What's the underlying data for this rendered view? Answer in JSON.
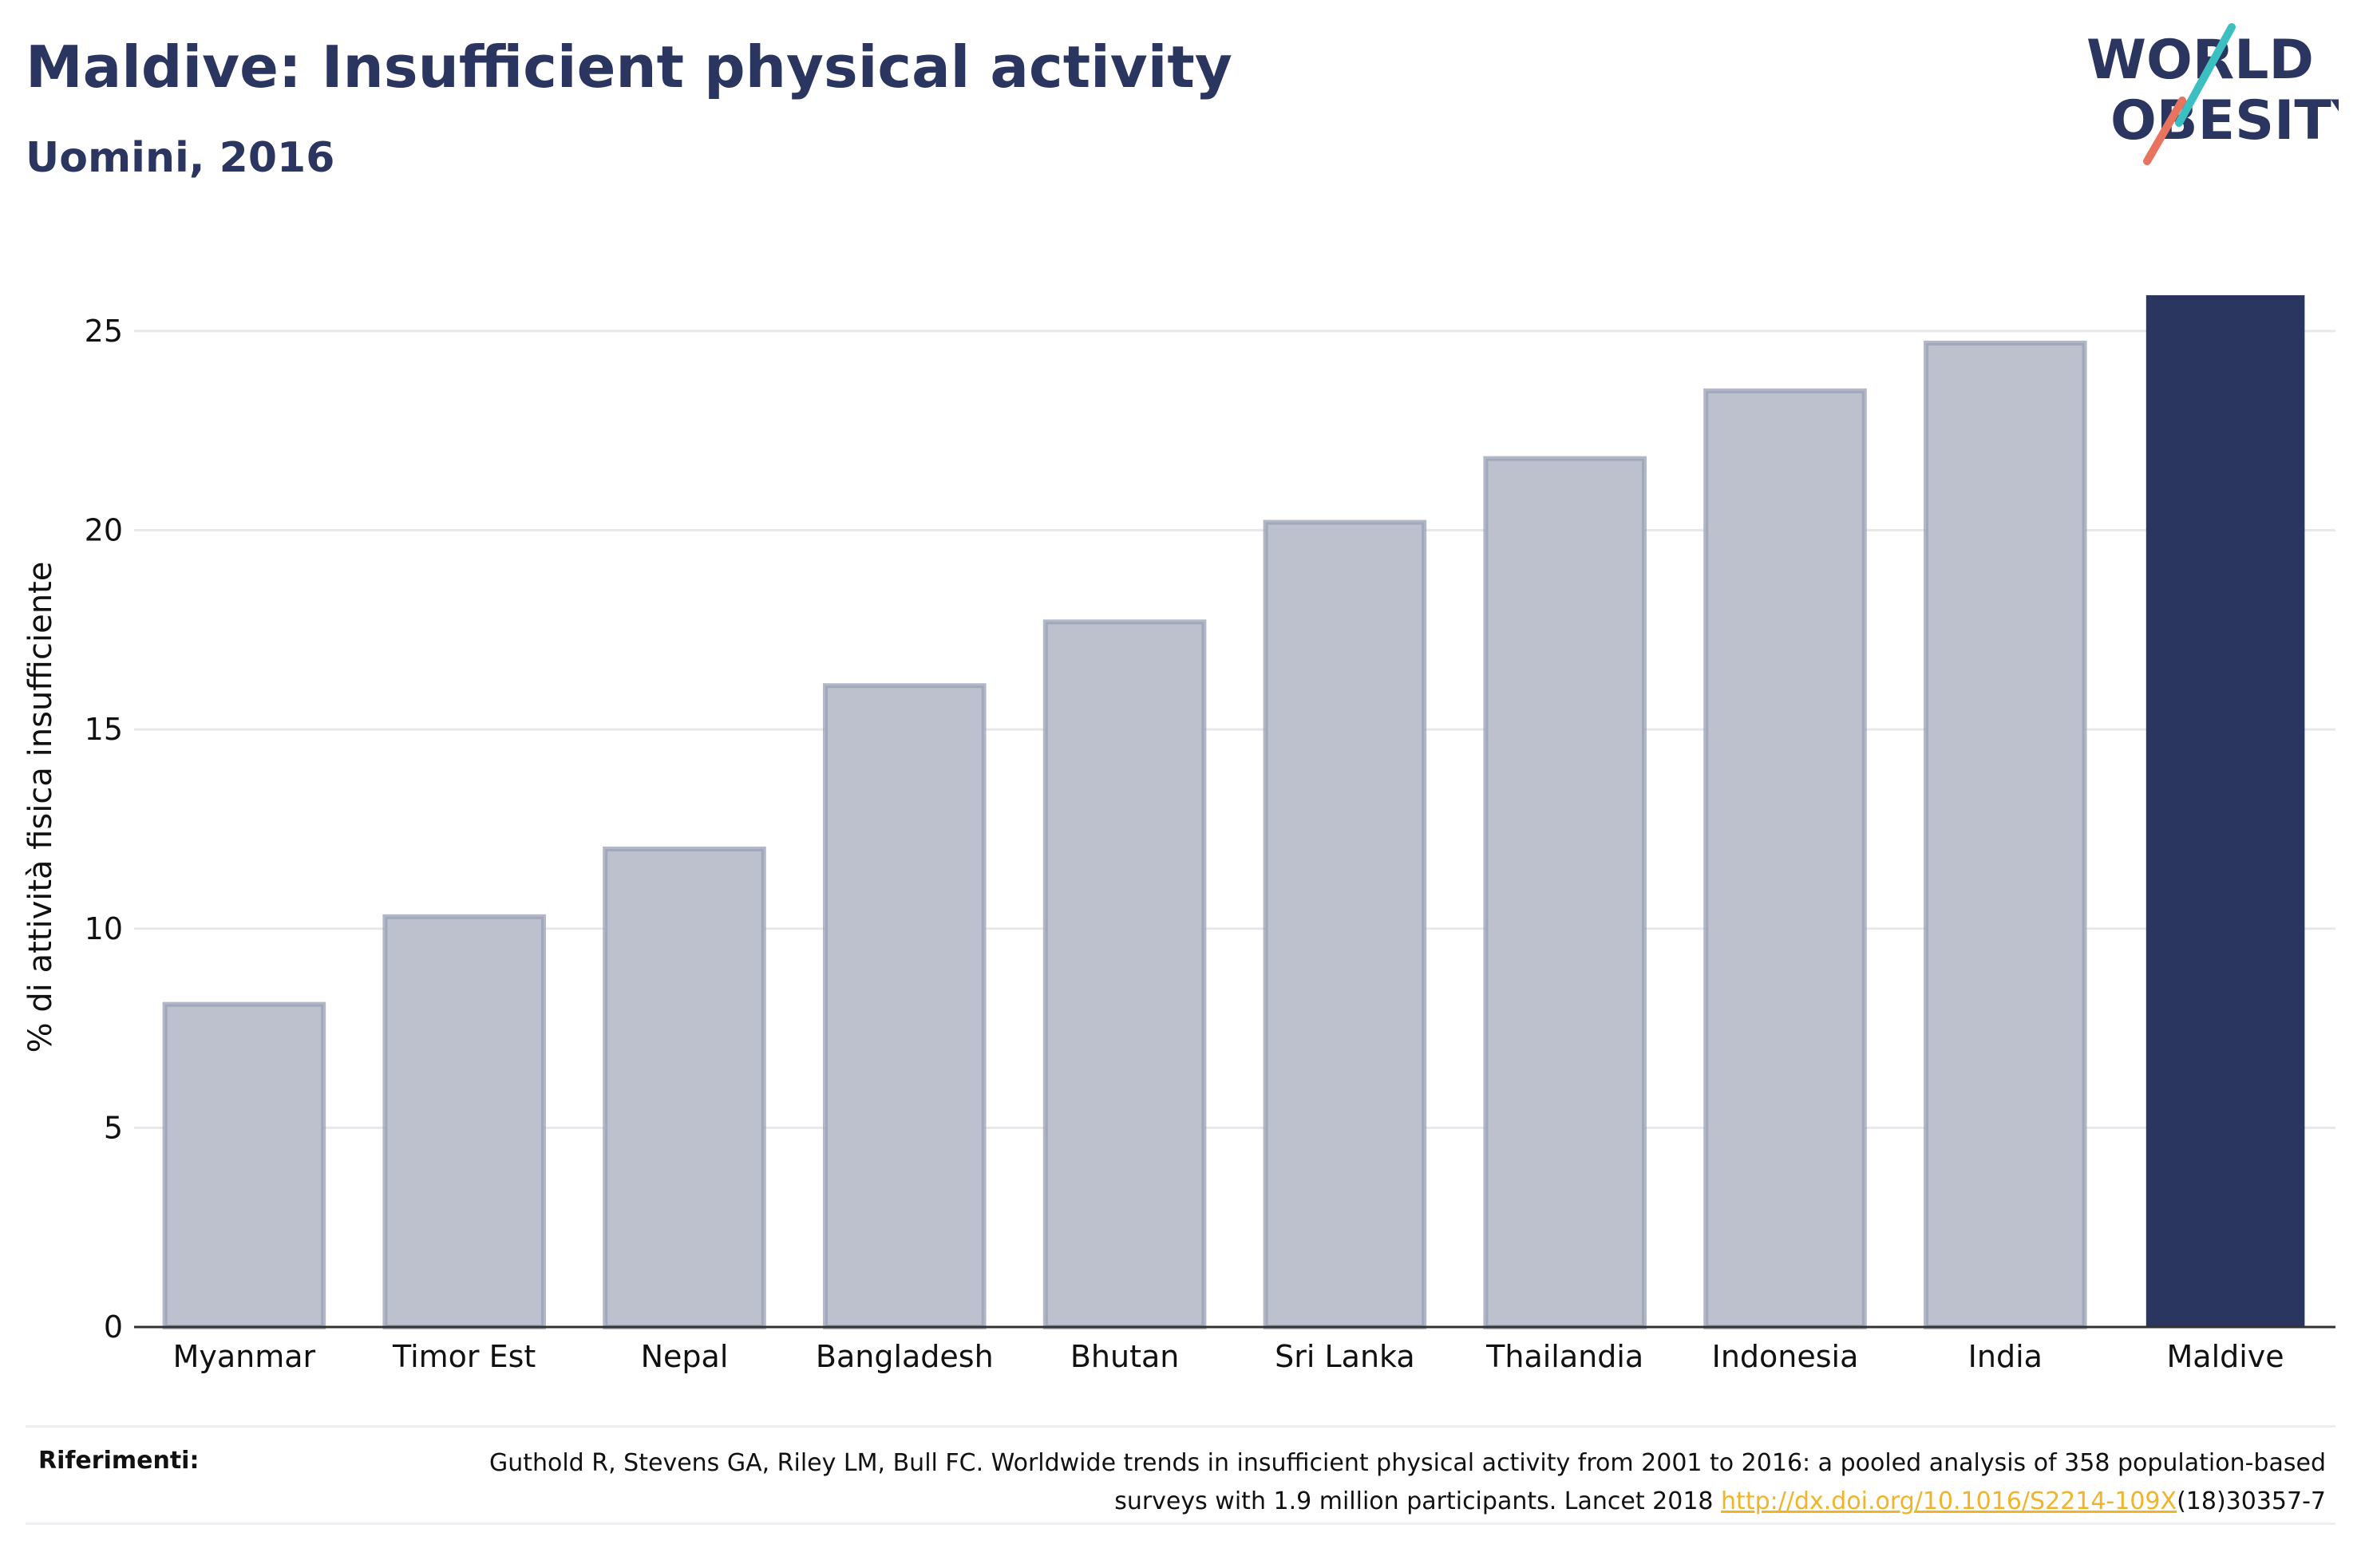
{
  "header": {
    "title": "Maldive: Insufficient physical activity",
    "subtitle": "Uomini, 2016"
  },
  "logo": {
    "line1": "WORLD",
    "line2": "OBESITY",
    "colors": {
      "text": "#2a3560",
      "slash_top": "#3bbfc0",
      "slash_bottom": "#e8735f"
    }
  },
  "chart_data": {
    "type": "bar",
    "title": "Maldive: Insufficient physical activity",
    "subtitle": "Uomini, 2016",
    "xlabel": "",
    "ylabel": "% di attività fisica insufficiente",
    "categories": [
      "Myanmar",
      "Timor Est",
      "Nepal",
      "Bangladesh",
      "Bhutan",
      "Sri Lanka",
      "Thailandia",
      "Indonesia",
      "India",
      "Maldive"
    ],
    "values": [
      8.1,
      10.3,
      12.0,
      16.1,
      17.7,
      20.2,
      21.8,
      23.5,
      24.7,
      25.9
    ],
    "highlight": "Maldive",
    "yticks": [
      0,
      5,
      10,
      15,
      20,
      25
    ],
    "ylim": [
      0,
      26.5
    ],
    "grid": true,
    "colors": {
      "bar": "#bdc0cd",
      "bar_edge": "#9aa0b5",
      "highlight": "#2a3560"
    }
  },
  "references": {
    "label": "Riferimenti:",
    "text_before": "Guthold R, Stevens GA, Riley LM, Bull FC. Worldwide trends in insufficient physical activity from 2001 to 2016: a pooled analysis of 358 population-based surveys with 1.9 million participants. Lancet 2018 ",
    "link": "http://dx.doi.org/10.1016/S2214-109X",
    "text_after": "(18)30357-7"
  }
}
